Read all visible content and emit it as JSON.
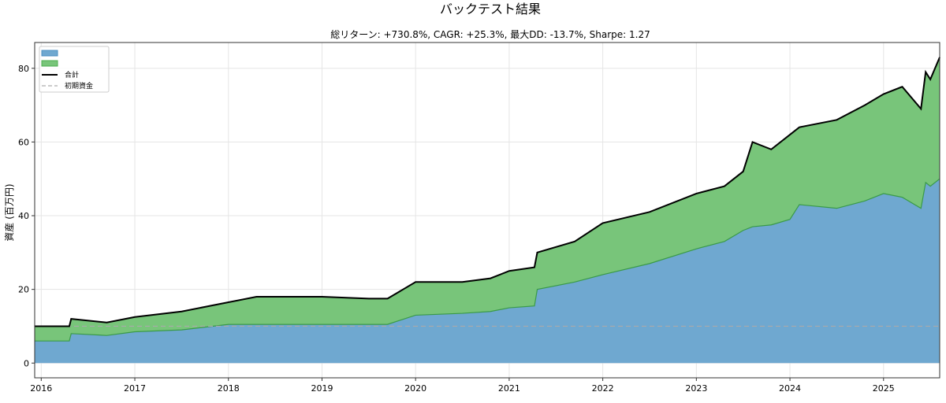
{
  "chart_data": {
    "type": "area",
    "title": "バックテスト結果",
    "subtitle": "総リターン: +730.8%, CAGR: +25.3%, 最大DD: -13.7%, Sharpe: 1.27",
    "xlabel": "",
    "ylabel": "資産 (百万円)",
    "xlim": [
      2015.93,
      2025.6
    ],
    "ylim": [
      -4,
      87
    ],
    "grid": true,
    "legend_position": "top-left",
    "x_ticks": [
      "2016",
      "2017",
      "2018",
      "2019",
      "2020",
      "2021",
      "2022",
      "2023",
      "2024",
      "2025"
    ],
    "y_ticks": [
      "0",
      "20",
      "40",
      "60",
      "80"
    ],
    "x": [
      2015.93,
      2016.3,
      2016.32,
      2016.7,
      2017.0,
      2017.5,
      2018.0,
      2018.3,
      2019.0,
      2019.5,
      2019.7,
      2020.0,
      2020.5,
      2020.8,
      2021.0,
      2021.27,
      2021.3,
      2021.7,
      2022.0,
      2022.5,
      2023.0,
      2023.3,
      2023.5,
      2023.6,
      2023.8,
      2024.0,
      2024.1,
      2024.5,
      2024.8,
      2025.0,
      2025.2,
      2025.4,
      2025.45,
      2025.5,
      2025.6
    ],
    "series": [
      {
        "name": "",
        "color": "#6fa8d0",
        "type": "stacked-area",
        "values": [
          6,
          6,
          8,
          7.5,
          8.5,
          9,
          10.5,
          10.5,
          10.5,
          10.5,
          10.5,
          13,
          13.5,
          14,
          15,
          15.5,
          20,
          22,
          24,
          27,
          31,
          33,
          36,
          37,
          37.5,
          39,
          43,
          42,
          44,
          46,
          45,
          42,
          49,
          48,
          50
        ]
      },
      {
        "name": "",
        "color": "#78c57a",
        "type": "stacked-area",
        "values": [
          4,
          4,
          4,
          3.5,
          4,
          5,
          6,
          7.5,
          7.5,
          7,
          7,
          9,
          8.5,
          9,
          10,
          10.5,
          10,
          11,
          14,
          14,
          15,
          15,
          16,
          23,
          20.5,
          23,
          21,
          24,
          26,
          27,
          30,
          27,
          30,
          29,
          33
        ]
      },
      {
        "name": "合計",
        "color": "#000000",
        "type": "line",
        "values": [
          10,
          10,
          12,
          11,
          12.5,
          14,
          16.5,
          18,
          18,
          17.5,
          17.5,
          22,
          22,
          23,
          25,
          26,
          30,
          33,
          38,
          41,
          46,
          48,
          52,
          60,
          58,
          62,
          64,
          66,
          70,
          73,
          75,
          69,
          79,
          77,
          83
        ]
      },
      {
        "name": "初期資金",
        "color": "#aaaaaa",
        "type": "dashed-hline",
        "value": 10
      }
    ]
  }
}
